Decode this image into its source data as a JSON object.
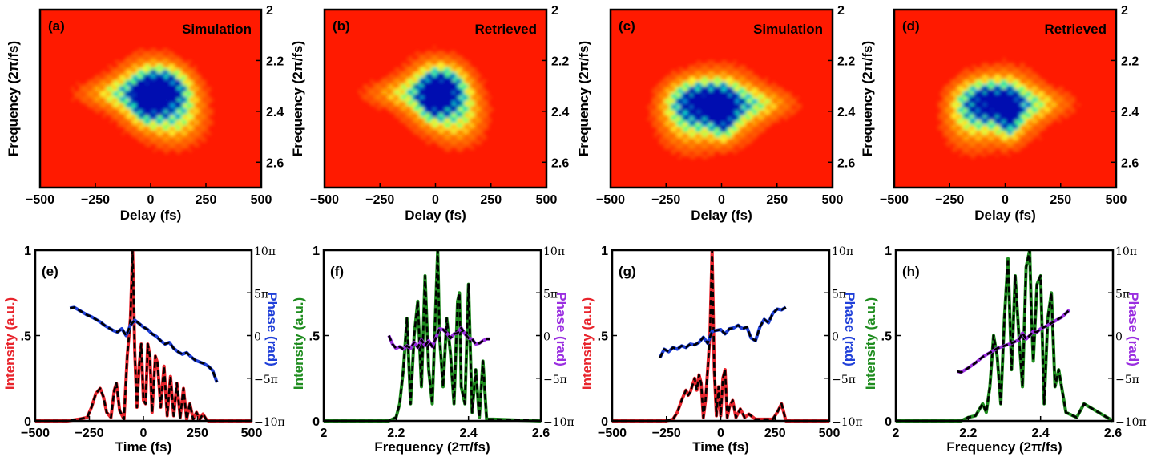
{
  "colors": {
    "heatmap_background": "#ff1a00",
    "heatmap_hot": "#ffff30",
    "heatmap_mid": "#30ff80",
    "heatmap_low": "#00c0e0",
    "heatmap_min": "#0010b0",
    "intensity_time": "#e8242c",
    "intensity_freq": "#1e8c1e",
    "phase_time": "#1f3fd8",
    "phase_freq": "#9a2ee0",
    "retrieved_dashed": "#000000"
  },
  "chart_data": [
    {
      "type": "heatmap",
      "panel": "(a)",
      "label": "Simulation",
      "xlabel": "Delay (fs)",
      "ylabel": "Frequency (2π/fs)",
      "xlim": [
        -500,
        500
      ],
      "ylim": [
        2.7,
        2.0
      ],
      "xticks": [
        "−500",
        "−250",
        "0",
        "250",
        "500"
      ],
      "yticks": [
        "2",
        "2.2",
        "2.4",
        "2.6"
      ],
      "blobs": [
        {
          "x": 0,
          "y": 2.33,
          "sx": 110,
          "sy": 0.09,
          "a": 0.9
        },
        {
          "x": 60,
          "y": 2.31,
          "sx": 70,
          "sy": 0.05,
          "a": 0.9
        },
        {
          "x": -20,
          "y": 2.36,
          "sx": 40,
          "sy": 0.05,
          "a": 0.8
        },
        {
          "x": -150,
          "y": 2.33,
          "sx": 130,
          "sy": 0.04,
          "a": 0.45
        },
        {
          "x": 120,
          "y": 2.42,
          "sx": 90,
          "sy": 0.08,
          "a": 0.55
        }
      ]
    },
    {
      "type": "heatmap",
      "panel": "(b)",
      "label": "Retrieved",
      "xlabel": "Delay (fs)",
      "ylabel": "Frequency (2π/fs)",
      "xlim": [
        -500,
        500
      ],
      "ylim": [
        2.7,
        2.0
      ],
      "xticks": [
        "−500",
        "−250",
        "0",
        "250",
        "500"
      ],
      "yticks": [
        "2",
        "2.2",
        "2.4",
        "2.6"
      ],
      "blobs": [
        {
          "x": 0,
          "y": 2.33,
          "sx": 100,
          "sy": 0.09,
          "a": 0.85
        },
        {
          "x": 40,
          "y": 2.31,
          "sx": 60,
          "sy": 0.05,
          "a": 0.85
        },
        {
          "x": -15,
          "y": 2.35,
          "sx": 35,
          "sy": 0.05,
          "a": 0.8
        },
        {
          "x": -160,
          "y": 2.33,
          "sx": 120,
          "sy": 0.04,
          "a": 0.4
        },
        {
          "x": 110,
          "y": 2.42,
          "sx": 80,
          "sy": 0.08,
          "a": 0.5
        }
      ]
    },
    {
      "type": "heatmap",
      "panel": "(c)",
      "label": "Simulation",
      "xlabel": "Delay (fs)",
      "ylabel": "Frequency (2π/fs)",
      "xlim": [
        -500,
        500
      ],
      "ylim": [
        2.7,
        2.0
      ],
      "xticks": [
        "−500",
        "−250",
        "0",
        "250",
        "500"
      ],
      "yticks": [
        "2",
        "2.2",
        "2.4",
        "2.6"
      ],
      "blobs": [
        {
          "x": 0,
          "y": 2.38,
          "sx": 120,
          "sy": 0.09,
          "a": 0.85
        },
        {
          "x": -100,
          "y": 2.36,
          "sx": 90,
          "sy": 0.05,
          "a": 0.8
        },
        {
          "x": 10,
          "y": 2.41,
          "sx": 35,
          "sy": 0.06,
          "a": 0.85
        },
        {
          "x": 150,
          "y": 2.37,
          "sx": 130,
          "sy": 0.04,
          "a": 0.45
        },
        {
          "x": -160,
          "y": 2.42,
          "sx": 90,
          "sy": 0.09,
          "a": 0.5
        }
      ]
    },
    {
      "type": "heatmap",
      "panel": "(d)",
      "label": "Retrieved",
      "xlabel": "Delay (fs)",
      "ylabel": "Frequency (2π/fs)",
      "xlim": [
        -500,
        500
      ],
      "ylim": [
        2.7,
        2.0
      ],
      "xticks": [
        "−500",
        "−250",
        "0",
        "250",
        "500"
      ],
      "yticks": [
        "2",
        "2.2",
        "2.4",
        "2.6"
      ],
      "blobs": [
        {
          "x": 0,
          "y": 2.38,
          "sx": 110,
          "sy": 0.09,
          "a": 0.85
        },
        {
          "x": -90,
          "y": 2.36,
          "sx": 80,
          "sy": 0.05,
          "a": 0.8
        },
        {
          "x": 20,
          "y": 2.41,
          "sx": 30,
          "sy": 0.06,
          "a": 0.85
        },
        {
          "x": 140,
          "y": 2.37,
          "sx": 120,
          "sy": 0.04,
          "a": 0.4
        },
        {
          "x": -170,
          "y": 2.42,
          "sx": 80,
          "sy": 0.09,
          "a": 0.45
        }
      ]
    },
    {
      "type": "line",
      "panel": "(e)",
      "xlabel": "Time (fs)",
      "ylabel_left": "Intensity (a.u.)",
      "ylabel_right": "Phase (rad)",
      "xlim": [
        -500,
        500
      ],
      "ylim": [
        0,
        1
      ],
      "xticks": [
        "−500",
        "−250",
        "0",
        "250",
        "500"
      ],
      "yticks_left": [
        "0",
        ".5",
        "1"
      ],
      "yticks_right": [
        "−10π",
        "−5π",
        "0",
        "5π",
        "10π"
      ],
      "intensity_color": "intensity_time",
      "phase_color": "phase_time",
      "series": [
        {
          "name": "Intensity",
          "axis": "left",
          "x": [
            -500,
            -350,
            -300,
            -260,
            -240,
            -220,
            -200,
            -185,
            -170,
            -150,
            -135,
            -125,
            -110,
            -90,
            -75,
            -60,
            -50,
            -40,
            -30,
            -20,
            -10,
            0,
            10,
            20,
            30,
            40,
            55,
            65,
            80,
            95,
            110,
            125,
            140,
            155,
            170,
            185,
            200,
            215,
            230,
            245,
            260,
            275,
            290,
            300,
            340,
            500
          ],
          "y": [
            0,
            0,
            0.01,
            0.02,
            0.08,
            0.16,
            0.19,
            0.14,
            0.05,
            0.02,
            0.18,
            0.22,
            0.06,
            0.01,
            0.38,
            0.6,
            1.0,
            0.4,
            0.08,
            0.32,
            0.45,
            0.12,
            0.1,
            0.45,
            0.38,
            0.05,
            0.38,
            0.34,
            0.08,
            0.32,
            0.03,
            0.26,
            0.03,
            0.22,
            0.02,
            0.19,
            0.01,
            0.1,
            0.01,
            0.05,
            0.01,
            0.04,
            0.01,
            0,
            0,
            0
          ]
        },
        {
          "name": "Phase",
          "axis": "right",
          "x": [
            -340,
            -320,
            -300,
            -280,
            -260,
            -240,
            -220,
            -200,
            -180,
            -160,
            -140,
            -120,
            -100,
            -80,
            -60,
            -40,
            -20,
            0,
            20,
            40,
            60,
            80,
            100,
            120,
            140,
            160,
            180,
            200,
            220,
            240,
            260,
            280,
            300,
            320,
            340
          ],
          "y": [
            3.2,
            3.3,
            3.0,
            2.7,
            2.4,
            2.2,
            1.9,
            1.6,
            1.2,
            0.9,
            0.6,
            0.4,
            0.8,
            0,
            1.2,
            1.8,
            1.4,
            1.0,
            0.7,
            0.2,
            -0.1,
            -0.6,
            -1.0,
            -0.8,
            -1.5,
            -1.9,
            -2.2,
            -2.0,
            -2.5,
            -2.9,
            -3.1,
            -3.3,
            -3.6,
            -4.1,
            -5.5
          ]
        }
      ]
    },
    {
      "type": "line",
      "panel": "(f)",
      "xlabel": "Frequency (2π/fs)",
      "ylabel_left": "Intensity (a.u.)",
      "ylabel_right": "Phase (rad)",
      "xlim": [
        2.0,
        2.6
      ],
      "ylim": [
        0,
        1
      ],
      "xticks": [
        "2",
        "2.2",
        "2.4",
        "2.6"
      ],
      "yticks_left": [
        "0",
        ".5",
        "1"
      ],
      "yticks_right": [
        "−10π",
        "−5π",
        "0",
        "5π",
        "10π"
      ],
      "intensity_color": "intensity_freq",
      "phase_color": "phase_freq",
      "series": [
        {
          "name": "Intensity",
          "axis": "left",
          "x": [
            2.0,
            2.18,
            2.2,
            2.21,
            2.22,
            2.23,
            2.24,
            2.25,
            2.26,
            2.27,
            2.28,
            2.29,
            2.3,
            2.31,
            2.315,
            2.32,
            2.33,
            2.34,
            2.35,
            2.36,
            2.37,
            2.375,
            2.38,
            2.39,
            2.4,
            2.41,
            2.42,
            2.43,
            2.44,
            2.45,
            2.47,
            2.6
          ],
          "y": [
            0,
            0,
            0.02,
            0.1,
            0.3,
            0.6,
            0.1,
            0.5,
            0.7,
            0.2,
            0.85,
            0.3,
            0.1,
            0.7,
            1.0,
            0.5,
            0.2,
            0.6,
            0.4,
            0.1,
            0.7,
            0.75,
            0.2,
            0.1,
            0.8,
            0.05,
            0.3,
            0.02,
            0.35,
            0.01,
            0.01,
            0
          ]
        },
        {
          "name": "Phase",
          "axis": "right",
          "x": [
            2.18,
            2.19,
            2.2,
            2.21,
            2.22,
            2.23,
            2.24,
            2.25,
            2.26,
            2.27,
            2.28,
            2.29,
            2.3,
            2.31,
            2.32,
            2.33,
            2.34,
            2.35,
            2.36,
            2.37,
            2.38,
            2.39,
            2.4,
            2.41,
            2.42,
            2.43,
            2.44,
            2.45,
            2.46
          ],
          "y": [
            0,
            -1,
            -1.5,
            -1.3,
            -1.6,
            -1.2,
            -1.5,
            -0.8,
            -1.4,
            -0.5,
            -1.2,
            -0.6,
            -1.3,
            -0.3,
            0.8,
            0.7,
            0.3,
            -0.3,
            0.2,
            0.3,
            0.9,
            0.2,
            -0.3,
            -0.4,
            -1.0,
            -0.9,
            -0.6,
            -0.4,
            -0.4
          ]
        }
      ]
    },
    {
      "type": "line",
      "panel": "(g)",
      "xlabel": "Time (fs)",
      "ylabel_left": "Intensity (a.u.)",
      "ylabel_right": "Phase (rad)",
      "xlim": [
        -500,
        500
      ],
      "ylim": [
        0,
        1
      ],
      "xticks": [
        "−500",
        "−250",
        "0",
        "250",
        "500"
      ],
      "yticks_left": [
        "0",
        ".5",
        "1"
      ],
      "yticks_right": [
        "−10π",
        "−5π",
        "0",
        "5π",
        "10π"
      ],
      "intensity_color": "intensity_time",
      "phase_color": "phase_time",
      "series": [
        {
          "name": "Intensity",
          "axis": "left",
          "x": [
            -500,
            -250,
            -220,
            -200,
            -180,
            -160,
            -150,
            -140,
            -120,
            -110,
            -100,
            -90,
            -80,
            -70,
            -60,
            -50,
            -40,
            -30,
            -20,
            -10,
            0,
            10,
            20,
            30,
            40,
            55,
            70,
            90,
            110,
            130,
            160,
            200,
            240,
            260,
            280,
            300,
            500
          ],
          "y": [
            0,
            0,
            0.01,
            0.05,
            0.12,
            0.18,
            0.15,
            0.17,
            0.25,
            0.18,
            0.27,
            0.22,
            0.02,
            0.12,
            0.3,
            0.5,
            1.0,
            0.3,
            0.03,
            0.2,
            0.03,
            0.25,
            0.3,
            0.02,
            0.08,
            0.12,
            0.02,
            0.07,
            0.02,
            0.04,
            0.01,
            0.01,
            0.01,
            0.05,
            0.1,
            0,
            0
          ]
        },
        {
          "name": "Phase",
          "axis": "right",
          "x": [
            -280,
            -260,
            -240,
            -220,
            -200,
            -180,
            -160,
            -140,
            -120,
            -100,
            -80,
            -60,
            -40,
            -20,
            0,
            20,
            40,
            60,
            80,
            100,
            120,
            140,
            160,
            180,
            200,
            220,
            240,
            260,
            280,
            300
          ],
          "y": [
            -2.6,
            -1.6,
            -1.9,
            -1.4,
            -1.6,
            -1.2,
            -1.4,
            -1.0,
            -1.1,
            -0.8,
            -0.2,
            -0.9,
            0.5,
            0.6,
            0.7,
            0.2,
            0.8,
            0.9,
            1.2,
            0.8,
            1.0,
            -0.3,
            -0.6,
            1.0,
            1.9,
            1.5,
            2.6,
            3.1,
            3.0,
            3.3
          ]
        }
      ]
    },
    {
      "type": "line",
      "panel": "(h)",
      "xlabel": "Frequency (2π/fs)",
      "ylabel_left": "Intensity (a.u.)",
      "ylabel_right": "Phase (rad)",
      "xlim": [
        2.0,
        2.6
      ],
      "ylim": [
        0,
        1
      ],
      "xticks": [
        "2",
        "2.2",
        "2.4",
        "2.6"
      ],
      "yticks_left": [
        "0",
        ".5",
        "1"
      ],
      "yticks_right": [
        "−10π",
        "−5π",
        "0",
        "5π",
        "10π"
      ],
      "intensity_color": "intensity_freq",
      "phase_color": "phase_freq",
      "series": [
        {
          "name": "Intensity",
          "axis": "left",
          "x": [
            2.0,
            2.18,
            2.2,
            2.22,
            2.24,
            2.25,
            2.26,
            2.27,
            2.28,
            2.29,
            2.3,
            2.31,
            2.32,
            2.33,
            2.34,
            2.35,
            2.36,
            2.37,
            2.375,
            2.38,
            2.39,
            2.4,
            2.41,
            2.42,
            2.43,
            2.44,
            2.45,
            2.47,
            2.5,
            2.52,
            2.6
          ],
          "y": [
            0,
            0,
            0.02,
            0.03,
            0.1,
            0.05,
            0.2,
            0.5,
            0.38,
            0.1,
            0.6,
            0.95,
            0.3,
            0.85,
            0.5,
            0.2,
            0.9,
            1.0,
            0.6,
            0.35,
            0.8,
            0.85,
            0.1,
            0.6,
            0.75,
            0.2,
            0.3,
            0.05,
            0.02,
            0.1,
            0
          ]
        },
        {
          "name": "Phase",
          "axis": "right",
          "x": [
            2.17,
            2.18,
            2.2,
            2.22,
            2.24,
            2.26,
            2.28,
            2.3,
            2.32,
            2.34,
            2.35,
            2.36,
            2.37,
            2.38,
            2.39,
            2.4,
            2.42,
            2.44,
            2.46,
            2.48
          ],
          "y": [
            -4.2,
            -4.3,
            -3.8,
            -3.2,
            -2.5,
            -2.0,
            -1.5,
            -1.2,
            -0.9,
            -0.5,
            0.3,
            -0.4,
            0.0,
            0.5,
            0.4,
            0.8,
            1.2,
            1.7,
            2.2,
            3.0
          ]
        }
      ]
    }
  ]
}
